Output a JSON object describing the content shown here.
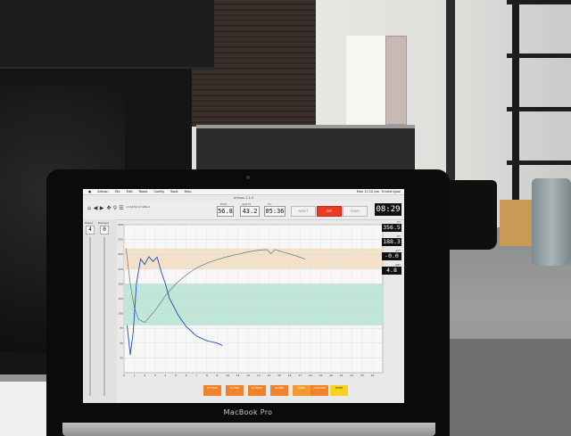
{
  "window": {
    "title": "Artisan 1.1.0"
  },
  "menubar": {
    "items": [
      "Artisan",
      "File",
      "Edit",
      "Roast",
      "Config",
      "Tools",
      "Help"
    ],
    "time": "Mon 12:10 pm",
    "user": "Ernest Igual"
  },
  "toolbar": {
    "coordinates": "x=14:52 y=106.4",
    "icons": [
      "home-icon",
      "back-icon",
      "forward-icon",
      "pan-icon",
      "zoom-icon",
      "configure-icon",
      "save-icon"
    ],
    "lcd_bt": {
      "label": "BT/ET",
      "value": "56.8"
    },
    "lcd_et": {
      "label": "delta ET",
      "value": "43.2"
    },
    "lcd_time": {
      "label": "FCs",
      "value": "05:36"
    },
    "reset_label": "RESET",
    "off_label": "OFF",
    "start_label": "START",
    "clock": "08:29"
  },
  "controls": {
    "power_label": "Power",
    "power_value": "4",
    "damper_label": "Damper",
    "damper_value": "0"
  },
  "readouts": [
    {
      "label": "ET",
      "value": "356.5"
    },
    {
      "label": "BT",
      "value": "188.3"
    },
    {
      "label": "ΔET",
      "value": "-0.0"
    },
    {
      "label": "ΔBT",
      "value": "4.8"
    }
  ],
  "events": [
    "TP START",
    "FC END",
    "SC START",
    "SC END",
    "DROP",
    "COOL END",
    "EVENT"
  ],
  "colors": {
    "accent_red": "#ee3a20",
    "et_line": "#6e7478",
    "ror_line": "#1a4fc0",
    "band_tan": "#f3e2c9",
    "band_green": "#bfe6d6"
  },
  "laptop": {
    "brand": "MacBook Pro"
  },
  "chart_data": {
    "type": "line",
    "x_range": [
      0,
      25
    ],
    "y_range": [
      0,
      250
    ],
    "x_ticks": [
      "0",
      "1",
      "2",
      "3",
      "4",
      "5",
      "6",
      "7",
      "8",
      "9",
      "10",
      "11",
      "12",
      "13",
      "14",
      "15",
      "16",
      "17",
      "18",
      "19",
      "20",
      "21",
      "22",
      "23",
      "24"
    ],
    "y_ticks": [
      "25",
      "50",
      "75",
      "100",
      "125",
      "150",
      "175",
      "200",
      "225",
      "250"
    ],
    "bands": [
      {
        "from": 175,
        "to": 210,
        "color": "tan"
      },
      {
        "from": 80,
        "to": 150,
        "color": "green"
      }
    ],
    "series": [
      {
        "values": [
          [
            0.2,
            210
          ],
          [
            0.6,
            150
          ],
          [
            1,
            110
          ],
          [
            1.4,
            90
          ],
          [
            2,
            85
          ],
          [
            3,
            105
          ],
          [
            4,
            130
          ],
          [
            5,
            150
          ],
          [
            6,
            165
          ],
          [
            7,
            177
          ],
          [
            8,
            185
          ],
          [
            9,
            191
          ],
          [
            10,
            196
          ],
          [
            11,
            200
          ],
          [
            12,
            204
          ],
          [
            13,
            207
          ],
          [
            13.8,
            208
          ],
          [
            14.2,
            201
          ],
          [
            14.6,
            208
          ],
          [
            15.5,
            203
          ],
          [
            16.5,
            198
          ],
          [
            17.5,
            192
          ]
        ]
      },
      {
        "values": [
          [
            0.3,
            80
          ],
          [
            0.6,
            30
          ],
          [
            0.9,
            70
          ],
          [
            1.2,
            150
          ],
          [
            1.6,
            192
          ],
          [
            2,
            183
          ],
          [
            2.4,
            196
          ],
          [
            2.8,
            188
          ],
          [
            3.2,
            195
          ],
          [
            3.6,
            170
          ],
          [
            4,
            150
          ],
          [
            4.4,
            125
          ],
          [
            4.8,
            112
          ],
          [
            5.2,
            98
          ],
          [
            5.6,
            88
          ],
          [
            6,
            78
          ],
          [
            6.5,
            70
          ],
          [
            7,
            62
          ],
          [
            7.5,
            58
          ],
          [
            8,
            54
          ],
          [
            8.5,
            52
          ],
          [
            9,
            50
          ],
          [
            9.5,
            46
          ]
        ]
      }
    ]
  }
}
